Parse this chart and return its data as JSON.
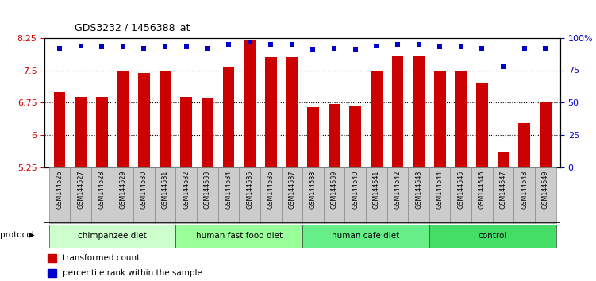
{
  "title": "GDS3232 / 1456388_at",
  "samples": [
    "GSM144526",
    "GSM144527",
    "GSM144528",
    "GSM144529",
    "GSM144530",
    "GSM144531",
    "GSM144532",
    "GSM144533",
    "GSM144534",
    "GSM144535",
    "GSM144536",
    "GSM144537",
    "GSM144538",
    "GSM144539",
    "GSM144540",
    "GSM144541",
    "GSM144542",
    "GSM144543",
    "GSM144544",
    "GSM144545",
    "GSM144546",
    "GSM144547",
    "GSM144548",
    "GSM144549"
  ],
  "bar_values": [
    7.0,
    6.88,
    6.88,
    7.47,
    7.44,
    7.5,
    6.88,
    6.86,
    7.57,
    8.2,
    7.8,
    7.8,
    6.65,
    6.72,
    6.68,
    7.47,
    7.82,
    7.82,
    7.47,
    7.47,
    7.22,
    5.62,
    6.28,
    6.77
  ],
  "percentile_values": [
    92,
    94,
    93,
    93,
    92,
    93,
    93,
    92,
    95,
    97,
    95,
    95,
    91,
    92,
    91,
    94,
    95,
    95,
    93,
    93,
    92,
    78,
    92,
    92
  ],
  "groups": [
    {
      "label": "chimpanzee diet",
      "start": 0,
      "end": 6,
      "color": "#ccffcc"
    },
    {
      "label": "human fast food diet",
      "start": 6,
      "end": 12,
      "color": "#99ff99"
    },
    {
      "label": "human cafe diet",
      "start": 12,
      "end": 18,
      "color": "#66ee88"
    },
    {
      "label": "control",
      "start": 18,
      "end": 24,
      "color": "#44dd66"
    }
  ],
  "ylim": [
    5.25,
    8.25
  ],
  "yticks": [
    5.25,
    6.0,
    6.75,
    7.5,
    8.25
  ],
  "ytick_labels": [
    "5.25",
    "6",
    "6.75",
    "7.5",
    "8.25"
  ],
  "right_yticks_pct": [
    0,
    25,
    50,
    75,
    100
  ],
  "right_ytick_labels": [
    "0",
    "25",
    "50",
    "75",
    "100%"
  ],
  "dotted_lines": [
    7.5,
    6.75,
    6.0
  ],
  "bar_color": "#cc0000",
  "percentile_color": "#0000cc",
  "bar_width": 0.55,
  "protocol_label": "protocol",
  "legend_items": [
    {
      "color": "#cc0000",
      "label": "transformed count"
    },
    {
      "color": "#0000cc",
      "label": "percentile rank within the sample"
    }
  ],
  "bg_color": "#ffffff",
  "tick_label_color_left": "#cc0000",
  "tick_label_color_right": "#0000cc",
  "box_color": "#cccccc",
  "box_edge_color": "#888888"
}
